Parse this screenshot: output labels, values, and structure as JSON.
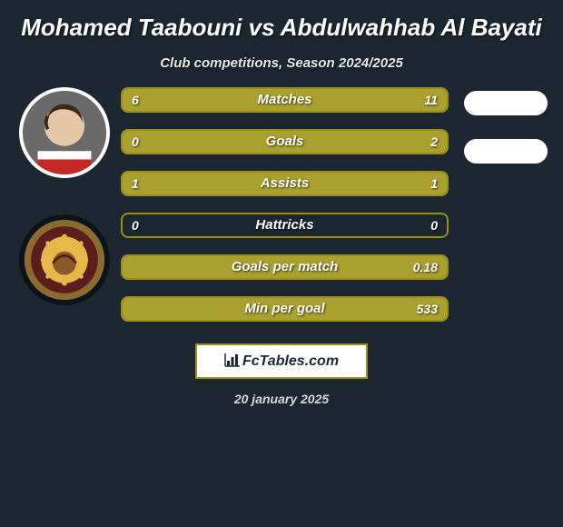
{
  "title": "Mohamed Taabouni vs Abdulwahhab Al Bayati",
  "subtitle": "Club competitions, Season 2024/2025",
  "date": "20 january 2025",
  "footer_label": "FcTables.com",
  "colors": {
    "background": "#1c2732",
    "bar_border": "#9b9015",
    "bar_fill": "#a9a030",
    "bar_empty": "#1c2732",
    "text": "#ffffff"
  },
  "avatars": {
    "player1": {
      "id": "player1-avatar"
    },
    "player2": {
      "id": "player2-badge"
    }
  },
  "bars": [
    {
      "label": "Matches",
      "left": "6",
      "right": "11",
      "left_pct": 35,
      "right_pct": 65
    },
    {
      "label": "Goals",
      "left": "0",
      "right": "2",
      "left_pct": 0,
      "right_pct": 100
    },
    {
      "label": "Assists",
      "left": "1",
      "right": "1",
      "left_pct": 50,
      "right_pct": 50
    },
    {
      "label": "Hattricks",
      "left": "0",
      "right": "0",
      "left_pct": 0,
      "right_pct": 0
    },
    {
      "label": "Goals per match",
      "left": "",
      "right": "0.18",
      "left_pct": 0,
      "right_pct": 100
    },
    {
      "label": "Min per goal",
      "left": "",
      "right": "533",
      "left_pct": 0,
      "right_pct": 100
    }
  ]
}
